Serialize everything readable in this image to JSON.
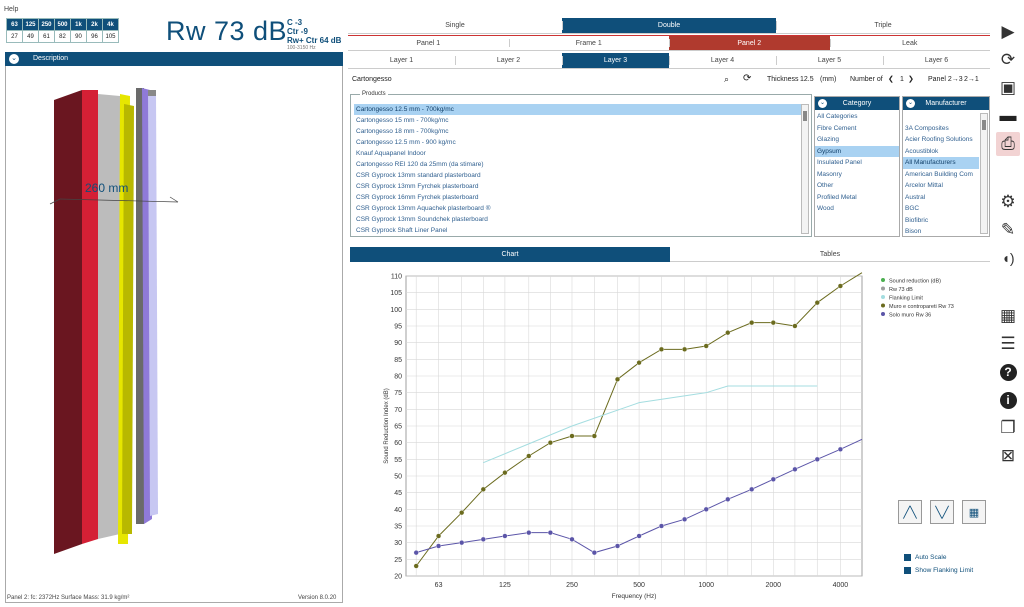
{
  "help": "Help",
  "octave": {
    "bands": [
      "63",
      "125",
      "250",
      "500",
      "1k",
      "2k",
      "4k"
    ],
    "values": [
      "27",
      "49",
      "61",
      "82",
      "90",
      "96",
      "105"
    ]
  },
  "rating": {
    "rw": "Rw 73 dB",
    "c": "C -3",
    "ctr": "Ctr -9",
    "rwctr": "Rw+ Ctr 64 dB",
    "range": "100-3150 Hz"
  },
  "description_label": "Description",
  "model_3d_label": "260 mm",
  "footer": {
    "status": "Panel 2:  fc: 2372Hz  Surface Mass: 31.9 kg/m²",
    "version": "Version 8.0.20"
  },
  "tabs_type": [
    "Single",
    "Double",
    "Triple"
  ],
  "tabs_panel": [
    "Panel 1",
    "Frame 1",
    "Panel 2",
    "Leak"
  ],
  "tabs_layer": [
    "Layer 1",
    "Layer 2",
    "Layer 3",
    "Layer 4",
    "Layer 5",
    "Layer 6"
  ],
  "search": {
    "value": "Cartongesso",
    "thickness_label": "Thickness",
    "thickness_value": "12.5",
    "unit": "(mm)",
    "number_of_label": "Number of",
    "number_value": "1",
    "panel_info": "Panel 2→3",
    "panel_info2": "2→1"
  },
  "products_label": "Products",
  "products": [
    "Cartongesso 12.5 mm - 700kg/mc",
    "Cartongesso 15 mm - 700kg/mc",
    "Cartongesso 18 mm - 700kg/mc",
    "Cartongesso 12.5 mm - 900 kg/mc",
    "Knauf Aquapanel Indoor",
    "Cartongesso REI 120 da 25mm (da stimare)",
    "CSR Gyprock 13mm standard plasterboard",
    "CSR Gyprock 13mm Fyrchek plasterboard",
    "CSR Gyprock 16mm Fyrchek plasterboard",
    "CSR Gyprock 13mm Aquachek plasterboard ®",
    "CSR Gyprock 13mm Soundchek plasterboard",
    "CSR Gyprock Shaft Liner Panel"
  ],
  "category_label": "Category",
  "categories": [
    "All Categories",
    "Fibre Cement",
    "Glazing",
    "Gypsum",
    "Insulated Panel",
    "Masonry",
    "Other",
    "Profiled Metal",
    "Wood"
  ],
  "manufacturer_label": "Manufacturer",
  "manufacturers": [
    "",
    "3A Composites",
    "Acier Roofing Solutions",
    "Acoustiblok",
    "All Manufacturers",
    "American Building Com",
    "Arcelor Mittal",
    "Austral",
    "BGC",
    "Biofibric",
    "Bison"
  ],
  "view_tabs": [
    "Chart",
    "Tables"
  ],
  "chart_data": {
    "type": "line",
    "xlabel": "Frequency (Hz)",
    "ylabel": "Sound Reduction Index (dB)",
    "x_ticks": [
      "63",
      "125",
      "250",
      "500",
      "1000",
      "2000",
      "4000"
    ],
    "ylim": [
      20,
      110
    ],
    "y_ticks": [
      20,
      25,
      30,
      35,
      40,
      45,
      50,
      55,
      60,
      65,
      70,
      75,
      80,
      85,
      90,
      95,
      100,
      105,
      110
    ],
    "legend": [
      "Sound reduction (dB)",
      "Rw 73 dB",
      "Flanking Limit",
      "Muro e contropareti Rw 73",
      "Solo muro Rw 36"
    ],
    "series": [
      {
        "name": "Muro e contropareti Rw 73",
        "color": "#6b6b1e",
        "x": [
          50,
          63,
          80,
          100,
          125,
          160,
          200,
          250,
          315,
          400,
          500,
          630,
          800,
          1000,
          1250,
          1600,
          2000,
          2500,
          3150,
          4000,
          5000
        ],
        "y": [
          23,
          32,
          39,
          46,
          51,
          56,
          60,
          62,
          62,
          79,
          84,
          88,
          88,
          89,
          93,
          96,
          96,
          95,
          102,
          107,
          111
        ]
      },
      {
        "name": "Solo muro Rw 36",
        "color": "#5b55a8",
        "x": [
          50,
          63,
          80,
          100,
          125,
          160,
          200,
          250,
          315,
          400,
          500,
          630,
          800,
          1000,
          1250,
          1600,
          2000,
          2500,
          3150,
          4000,
          5000
        ],
        "y": [
          27,
          29,
          30,
          31,
          32,
          33,
          33,
          31,
          27,
          29,
          32,
          35,
          37,
          40,
          43,
          46,
          49,
          52,
          55,
          58,
          61
        ]
      },
      {
        "name": "Flanking Limit",
        "color": "#a4dde0",
        "x": [
          100,
          250,
          500,
          1000,
          1250,
          1600,
          2000,
          2500,
          3150
        ],
        "y": [
          54,
          65,
          72,
          75,
          77,
          77,
          77,
          77,
          77
        ]
      }
    ]
  },
  "chart_checks": [
    "Auto Scale",
    "Show Flanking Limit"
  ],
  "colors": {
    "accent": "#0f4f7a",
    "panel_red": "#b03a2e"
  }
}
